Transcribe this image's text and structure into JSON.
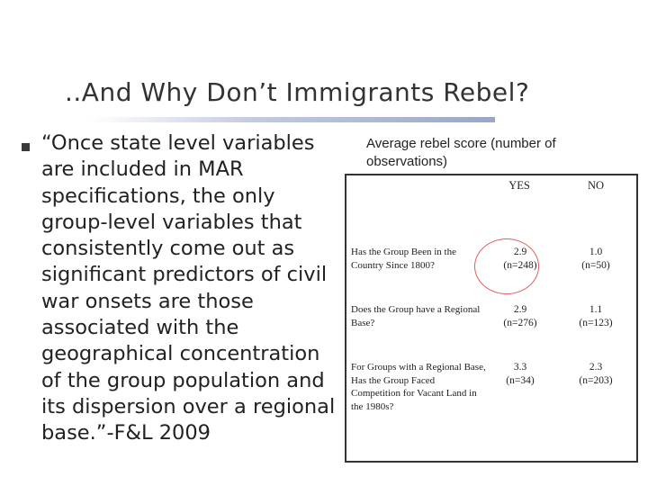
{
  "slide": {
    "title": "..And Why Don’t Immigrants Rebel?",
    "bullet_text": "“Once state level variables are included in MAR specifications, the only group-level variables that consistently come out as significant predictors of civil war onsets are those associated with the geographical concentration of the group population and its dispersion over a regional base.”-F&L 2009"
  },
  "table": {
    "caption": "Average rebel score (number of observations)",
    "columns": [
      "YES",
      "NO"
    ],
    "rows": [
      {
        "label": "Has the Group Been in the Country Since 1800?",
        "yes": "2.9",
        "yes_n": "(n=248)",
        "no": "1.0",
        "no_n": "(n=50)"
      },
      {
        "label": "Does the Group have a Regional Base?",
        "yes": "2.9",
        "yes_n": "(n=276)",
        "no": "1.1",
        "no_n": "(n=123)"
      },
      {
        "label": "For Groups with a Regional Base, Has the Group Faced Competition for Vacant Land in the 1980s?",
        "yes": "3.3",
        "yes_n": "(n=34)",
        "no": "2.3",
        "no_n": "(n=203)"
      }
    ],
    "highlight_color": "#e05a5a"
  }
}
